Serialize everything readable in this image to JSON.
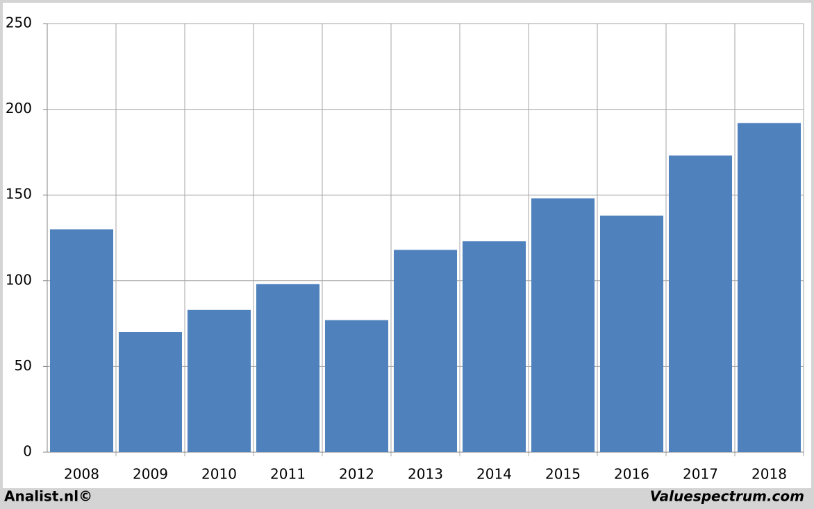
{
  "chart_data": {
    "type": "bar",
    "categories": [
      "2008",
      "2009",
      "2010",
      "2011",
      "2012",
      "2013",
      "2014",
      "2015",
      "2016",
      "2017",
      "2018"
    ],
    "values": [
      130,
      70,
      83,
      98,
      77,
      118,
      123,
      148,
      138,
      173,
      192
    ],
    "color": "#4f81bd",
    "ylim": [
      0,
      250
    ],
    "yticks": [
      0,
      50,
      100,
      150,
      200,
      250
    ],
    "grid": true
  },
  "footer": {
    "left": "Analist.nl©",
    "right": "Valuespectrum.com"
  }
}
